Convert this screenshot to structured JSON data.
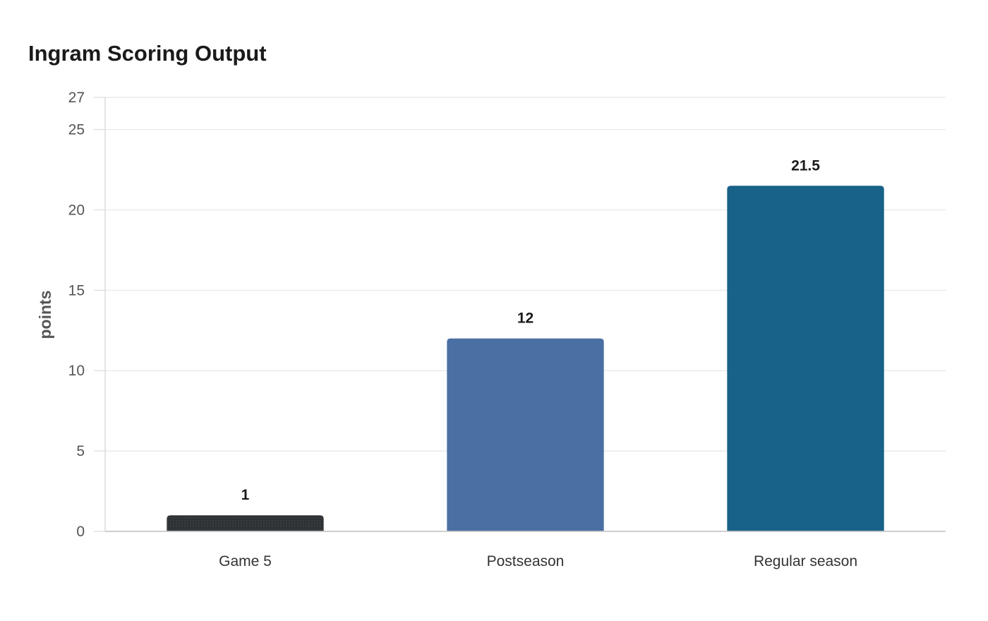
{
  "chart_data": {
    "type": "bar",
    "title": "Ingram Scoring Output",
    "xlabel": "",
    "ylabel": "points",
    "categories": [
      "Game 5",
      "Postseason",
      "Regular season"
    ],
    "values": [
      1,
      12,
      21.5
    ],
    "value_labels": [
      "1",
      "12",
      "21.5"
    ],
    "bar_colors": [
      "#2e3235",
      "#4a6fa3",
      "#186188"
    ],
    "ylim": [
      0,
      27
    ],
    "yticks": [
      0,
      5,
      10,
      15,
      20,
      25,
      27
    ],
    "grid": true,
    "legend": "none"
  }
}
